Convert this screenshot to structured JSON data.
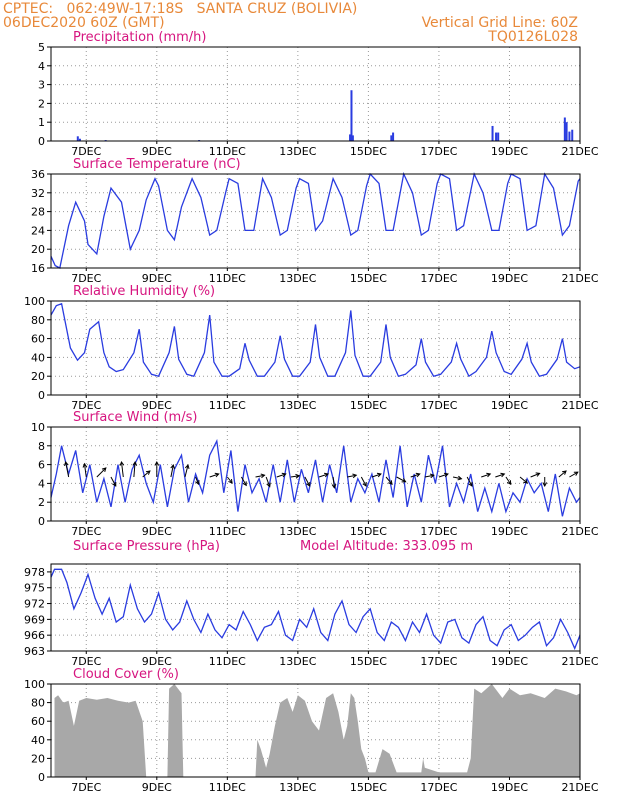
{
  "header": {
    "line1": "CPTEC:   062:49W-17:18S   SANTA CRUZ (BOLIVIA)",
    "line2": "06DEC2020 60Z (GMT)",
    "grid_note": "Vertical Grid Line: 60Z",
    "code": "TQ0126L028"
  },
  "colors": {
    "header": "#e8893a",
    "title": "#d6157f",
    "line": "#2a3ce0",
    "cloud": "#a8a8a8",
    "grid": "#9a9a9a"
  },
  "chart_data": [
    {
      "type": "bar",
      "title": "Precipitation (mm/h)",
      "x_tick_labels": [
        "7DEC",
        "9DEC",
        "11DEC",
        "13DEC",
        "15DEC",
        "17DEC",
        "19DEC",
        "21DEC"
      ],
      "y_ticks": [
        "0",
        "1",
        "2",
        "3",
        "4",
        "5"
      ],
      "ylim": [
        0,
        5
      ],
      "grid": true,
      "x_unit": "days since 06DEC2020 00Z",
      "bars": [
        {
          "x": 0.76,
          "y": 0.25
        },
        {
          "x": 0.82,
          "y": 0.12
        },
        {
          "x": 1.55,
          "y": 0.05
        },
        {
          "x": 4.2,
          "y": 0.05
        },
        {
          "x": 8.48,
          "y": 0.35
        },
        {
          "x": 8.52,
          "y": 2.7
        },
        {
          "x": 8.56,
          "y": 0.3
        },
        {
          "x": 9.65,
          "y": 0.3
        },
        {
          "x": 9.7,
          "y": 0.45
        },
        {
          "x": 12.52,
          "y": 0.8
        },
        {
          "x": 12.62,
          "y": 0.45
        },
        {
          "x": 12.68,
          "y": 0.45
        },
        {
          "x": 14.57,
          "y": 1.25
        },
        {
          "x": 14.62,
          "y": 1.0
        },
        {
          "x": 14.7,
          "y": 0.5
        },
        {
          "x": 14.78,
          "y": 0.6
        }
      ]
    },
    {
      "type": "line",
      "title": "Surface Temperature (nC)",
      "x_tick_labels": [
        "7DEC",
        "9DEC",
        "11DEC",
        "13DEC",
        "15DEC",
        "17DEC",
        "19DEC",
        "21DEC"
      ],
      "y_ticks": [
        "16",
        "20",
        "24",
        "28",
        "32",
        "36"
      ],
      "ylim": [
        16,
        36
      ],
      "grid": true,
      "x": [
        0,
        0.12,
        0.25,
        0.5,
        0.7,
        0.95,
        1.05,
        1.3,
        1.5,
        1.7,
        2.0,
        2.25,
        2.5,
        2.7,
        2.95,
        3.05,
        3.3,
        3.5,
        3.7,
        4.0,
        4.25,
        4.5,
        4.7,
        4.95,
        5.05,
        5.3,
        5.5,
        5.75,
        6.0,
        6.25,
        6.5,
        6.7,
        6.95,
        7.05,
        7.3,
        7.5,
        7.7,
        8.0,
        8.25,
        8.5,
        8.7,
        8.95,
        9.05,
        9.3,
        9.5,
        9.7,
        10.0,
        10.25,
        10.5,
        10.7,
        10.95,
        11.05,
        11.3,
        11.5,
        11.7,
        12.0,
        12.25,
        12.5,
        12.7,
        12.95,
        13.05,
        13.3,
        13.5,
        13.75,
        14.0,
        14.25,
        14.5,
        14.7,
        14.95,
        15.0
      ],
      "y": [
        18.5,
        16.5,
        16.0,
        25.0,
        30.0,
        26.0,
        21.0,
        19.0,
        27.0,
        33.0,
        30.0,
        20.0,
        24.0,
        30.5,
        35.0,
        33.5,
        24.0,
        22.0,
        29.0,
        35.0,
        31.0,
        23.0,
        24.0,
        32.0,
        35.0,
        34.0,
        24.0,
        24.0,
        35.0,
        31.0,
        23.0,
        24.0,
        33.0,
        35.0,
        34.0,
        24.0,
        26.0,
        35.0,
        31.0,
        23.0,
        24.0,
        33.5,
        36.0,
        34.0,
        24.0,
        24.0,
        36.0,
        32.0,
        23.0,
        24.0,
        34.0,
        36.0,
        35.0,
        24.0,
        25.0,
        36.0,
        32.0,
        24.0,
        24.0,
        34.0,
        36.0,
        35.0,
        24.0,
        25.0,
        36.0,
        33.0,
        23.0,
        25.0,
        34.5,
        35.0
      ]
    },
    {
      "type": "line",
      "title": "Relative Humidity (%)",
      "x_tick_labels": [
        "7DEC",
        "9DEC",
        "11DEC",
        "13DEC",
        "15DEC",
        "17DEC",
        "19DEC",
        "21DEC"
      ],
      "y_ticks": [
        "0",
        "20",
        "40",
        "60",
        "80",
        "100"
      ],
      "ylim": [
        0,
        100
      ],
      "grid": true,
      "x": [
        0,
        0.15,
        0.3,
        0.55,
        0.75,
        0.95,
        1.1,
        1.35,
        1.5,
        1.65,
        1.85,
        2.05,
        2.35,
        2.5,
        2.62,
        2.85,
        3.05,
        3.35,
        3.5,
        3.62,
        3.85,
        4.05,
        4.35,
        4.5,
        4.62,
        4.85,
        5.05,
        5.35,
        5.5,
        5.62,
        5.85,
        6.05,
        6.35,
        6.5,
        6.62,
        6.85,
        7.05,
        7.35,
        7.5,
        7.62,
        7.85,
        8.05,
        8.35,
        8.5,
        8.62,
        8.85,
        9.05,
        9.35,
        9.5,
        9.62,
        9.85,
        10.05,
        10.35,
        10.5,
        10.62,
        10.85,
        11.05,
        11.35,
        11.5,
        11.62,
        11.85,
        12.05,
        12.35,
        12.5,
        12.62,
        12.85,
        13.05,
        13.35,
        13.5,
        13.62,
        13.85,
        14.05,
        14.35,
        14.5,
        14.62,
        14.85,
        15.0
      ],
      "y": [
        85,
        95,
        97,
        50,
        37,
        45,
        70,
        78,
        45,
        30,
        25,
        27,
        45,
        70,
        35,
        22,
        20,
        45,
        73,
        38,
        22,
        20,
        45,
        85,
        35,
        20,
        20,
        28,
        55,
        37,
        20,
        20,
        35,
        63,
        38,
        20,
        20,
        35,
        75,
        40,
        20,
        20,
        45,
        90,
        42,
        20,
        20,
        35,
        75,
        40,
        20,
        22,
        32,
        60,
        35,
        20,
        22,
        35,
        55,
        38,
        20,
        25,
        40,
        68,
        45,
        25,
        22,
        38,
        55,
        35,
        20,
        22,
        38,
        60,
        35,
        28,
        30
      ]
    },
    {
      "type": "line",
      "title": "Surface Wind (m/s)",
      "x_tick_labels": [
        "7DEC",
        "9DEC",
        "11DEC",
        "13DEC",
        "15DEC",
        "17DEC",
        "19DEC",
        "21DEC"
      ],
      "y_ticks": [
        "0",
        "2",
        "4",
        "6",
        "8",
        "10"
      ],
      "ylim": [
        0,
        10
      ],
      "grid": true,
      "x": [
        0,
        0.15,
        0.3,
        0.5,
        0.7,
        0.9,
        1.1,
        1.3,
        1.5,
        1.7,
        1.9,
        2.1,
        2.3,
        2.5,
        2.7,
        2.9,
        3.1,
        3.3,
        3.5,
        3.7,
        3.9,
        4.1,
        4.3,
        4.5,
        4.7,
        4.9,
        5.1,
        5.3,
        5.5,
        5.7,
        5.9,
        6.1,
        6.3,
        6.5,
        6.7,
        6.9,
        7.1,
        7.3,
        7.5,
        7.7,
        7.9,
        8.1,
        8.3,
        8.5,
        8.7,
        8.9,
        9.1,
        9.3,
        9.5,
        9.7,
        9.9,
        10.1,
        10.3,
        10.5,
        10.7,
        10.9,
        11.1,
        11.3,
        11.5,
        11.7,
        11.9,
        12.1,
        12.3,
        12.5,
        12.7,
        12.9,
        13.1,
        13.3,
        13.5,
        13.7,
        13.9,
        14.1,
        14.3,
        14.5,
        14.7,
        14.9,
        15.0
      ],
      "y": [
        2.5,
        5,
        8,
        5,
        7.5,
        3,
        6,
        2,
        4.5,
        1.5,
        6,
        2,
        5.5,
        7,
        4,
        2,
        6,
        1.5,
        5.5,
        7,
        2,
        5,
        3,
        7,
        8.5,
        3,
        7.5,
        1,
        6,
        3,
        4.5,
        2,
        6,
        2,
        6.5,
        2,
        5.5,
        3,
        6.5,
        2,
        6,
        3,
        8,
        2,
        4.5,
        3,
        5,
        2,
        6.5,
        2.5,
        8,
        1.5,
        5,
        2,
        7,
        4,
        8,
        1.5,
        4,
        2,
        5,
        1,
        3.5,
        1,
        4,
        1,
        3,
        2,
        4.5,
        3,
        4,
        1,
        5,
        0.5,
        3.5,
        2,
        2.5
      ],
      "arrows_m_s": [
        {
          "x": 0.5,
          "u": -0.5,
          "v": 2.5
        },
        {
          "x": 1.0,
          "u": -0.3,
          "v": 2.2
        },
        {
          "x": 1.3,
          "u": 1.5,
          "v": 1.5
        },
        {
          "x": 1.7,
          "u": 0.8,
          "v": -1.5
        },
        {
          "x": 2.05,
          "u": -0.3,
          "v": 2.5
        },
        {
          "x": 2.35,
          "u": 0.2,
          "v": 2.5
        },
        {
          "x": 2.6,
          "u": 1.2,
          "v": 1.0
        },
        {
          "x": 3.0,
          "u": 0.0,
          "v": 2.5
        },
        {
          "x": 3.4,
          "u": 0.4,
          "v": 2.0
        },
        {
          "x": 3.8,
          "u": 0.5,
          "v": 2.0
        },
        {
          "x": 4.1,
          "u": 0.5,
          "v": -1.2
        },
        {
          "x": 4.5,
          "u": 1.5,
          "v": 0.5
        },
        {
          "x": 5.0,
          "u": 0.8,
          "v": -1.0
        },
        {
          "x": 5.4,
          "u": 0.8,
          "v": -1.4
        },
        {
          "x": 5.8,
          "u": 1.5,
          "v": 0.3
        },
        {
          "x": 6.1,
          "u": 0.6,
          "v": -1.6
        },
        {
          "x": 6.4,
          "u": 1.5,
          "v": 0.5
        },
        {
          "x": 6.8,
          "u": 1.4,
          "v": 0.2
        },
        {
          "x": 7.2,
          "u": 0.8,
          "v": -1.5
        },
        {
          "x": 7.6,
          "u": 1.5,
          "v": 0.5
        },
        {
          "x": 8.0,
          "u": 0.2,
          "v": -1.8
        },
        {
          "x": 8.4,
          "u": 1.5,
          "v": 0.3
        },
        {
          "x": 8.8,
          "u": 0.8,
          "v": -1.5
        },
        {
          "x": 9.1,
          "u": 1.5,
          "v": 0.5
        },
        {
          "x": 9.5,
          "u": 1.0,
          "v": -1.2
        },
        {
          "x": 9.8,
          "u": 1.5,
          "v": -0.8
        },
        {
          "x": 10.2,
          "u": 1.5,
          "v": 0.5
        },
        {
          "x": 10.6,
          "u": 1.5,
          "v": 0.3
        },
        {
          "x": 11.0,
          "u": 1.5,
          "v": 0.5
        },
        {
          "x": 11.4,
          "u": 1.4,
          "v": -0.3
        },
        {
          "x": 11.8,
          "u": 0.8,
          "v": -1.5
        },
        {
          "x": 12.2,
          "u": 1.5,
          "v": 0.5
        },
        {
          "x": 12.6,
          "u": 1.5,
          "v": 0.5
        },
        {
          "x": 12.9,
          "u": 0.8,
          "v": -1.2
        },
        {
          "x": 13.3,
          "u": 1.2,
          "v": -1.0
        },
        {
          "x": 13.6,
          "u": 1.5,
          "v": 0.6
        },
        {
          "x": 14.0,
          "u": 0.0,
          "v": -1.5
        },
        {
          "x": 14.4,
          "u": 1.2,
          "v": 1.0
        },
        {
          "x": 14.7,
          "u": 1.4,
          "v": 0.8
        }
      ]
    },
    {
      "type": "line",
      "title": "Surface Pressure (hPa)",
      "annotation": "Model Altitude: 333.095 m",
      "x_tick_labels": [
        "7DEC",
        "9DEC",
        "11DEC",
        "13DEC",
        "15DEC",
        "17DEC",
        "19DEC",
        "21DEC"
      ],
      "y_ticks": [
        "963",
        "966",
        "969",
        "972",
        "975",
        "978"
      ],
      "ylim": [
        963,
        979.5
      ],
      "grid": true,
      "x": [
        0,
        0.1,
        0.3,
        0.45,
        0.65,
        0.85,
        1.05,
        1.25,
        1.45,
        1.65,
        1.85,
        2.05,
        2.25,
        2.45,
        2.65,
        2.85,
        3.05,
        3.25,
        3.45,
        3.65,
        3.85,
        4.05,
        4.25,
        4.45,
        4.65,
        4.85,
        5.05,
        5.25,
        5.45,
        5.65,
        5.85,
        6.05,
        6.25,
        6.45,
        6.65,
        6.85,
        7.05,
        7.25,
        7.45,
        7.65,
        7.85,
        8.05,
        8.25,
        8.45,
        8.65,
        8.85,
        9.05,
        9.25,
        9.45,
        9.65,
        9.85,
        10.05,
        10.25,
        10.45,
        10.65,
        10.85,
        11.05,
        11.25,
        11.45,
        11.65,
        11.85,
        12.05,
        12.25,
        12.45,
        12.65,
        12.85,
        13.05,
        13.25,
        13.45,
        13.65,
        13.85,
        14.05,
        14.25,
        14.45,
        14.65,
        14.85,
        15.0
      ],
      "y": [
        977,
        978.5,
        978.5,
        976,
        971,
        974,
        977.5,
        973,
        970,
        973,
        968.5,
        969.5,
        975.5,
        971,
        968.5,
        970,
        974,
        969,
        967,
        968.5,
        972.5,
        969,
        966.5,
        970,
        967,
        965.5,
        968,
        967,
        970.5,
        968,
        965,
        967.5,
        968,
        970.5,
        966,
        965,
        969,
        967.5,
        971,
        966.5,
        965,
        970,
        972.5,
        968,
        966.5,
        969.5,
        971,
        966.5,
        965,
        968.5,
        967.5,
        965,
        968.5,
        966.5,
        970,
        966,
        964.5,
        968.5,
        969,
        965.5,
        964.5,
        968,
        969.5,
        965,
        964,
        967,
        968,
        965,
        966,
        967.5,
        968.5,
        964,
        965.5,
        969,
        966.5,
        963.5,
        966
      ]
    },
    {
      "type": "area",
      "title": "Cloud Cover (%)",
      "x_tick_labels": [
        "7DEC",
        "9DEC",
        "11DEC",
        "13DEC",
        "15DEC",
        "17DEC",
        "19DEC",
        "21DEC"
      ],
      "y_ticks": [
        "0",
        "20",
        "40",
        "60",
        "80",
        "100"
      ],
      "ylim": [
        0,
        100
      ],
      "grid": true,
      "x": [
        0.1,
        0.2,
        0.35,
        0.5,
        0.65,
        0.8,
        1.0,
        1.3,
        1.6,
        1.9,
        2.2,
        2.4,
        2.6,
        2.7,
        3.3,
        3.35,
        3.5,
        3.7,
        3.75,
        5.8,
        5.85,
        5.95,
        6.1,
        6.2,
        6.35,
        6.5,
        6.7,
        6.85,
        7.0,
        7.2,
        7.4,
        7.6,
        7.8,
        8.0,
        8.15,
        8.3,
        8.4,
        8.5,
        8.6,
        8.7,
        8.8,
        8.9,
        9.0,
        9.2,
        9.4,
        9.6,
        9.8,
        10.0,
        10.4,
        10.5,
        10.55,
        10.6,
        11.0,
        11.2,
        11.5,
        11.8,
        11.9,
        12.0,
        12.2,
        12.5,
        12.8,
        13.0,
        13.3,
        13.6,
        14.0,
        14.3,
        14.6,
        14.9,
        15.0
      ],
      "y": [
        85,
        88,
        80,
        82,
        55,
        82,
        85,
        83,
        85,
        82,
        80,
        82,
        60,
        0,
        0,
        95,
        100,
        90,
        0,
        0,
        40,
        30,
        10,
        25,
        55,
        80,
        85,
        70,
        88,
        82,
        60,
        50,
        85,
        90,
        70,
        40,
        55,
        90,
        85,
        60,
        30,
        20,
        5,
        5,
        30,
        25,
        5,
        5,
        5,
        5,
        20,
        10,
        5,
        5,
        5,
        5,
        20,
        95,
        90,
        100,
        85,
        95,
        88,
        90,
        85,
        95,
        92,
        88,
        90
      ]
    }
  ]
}
